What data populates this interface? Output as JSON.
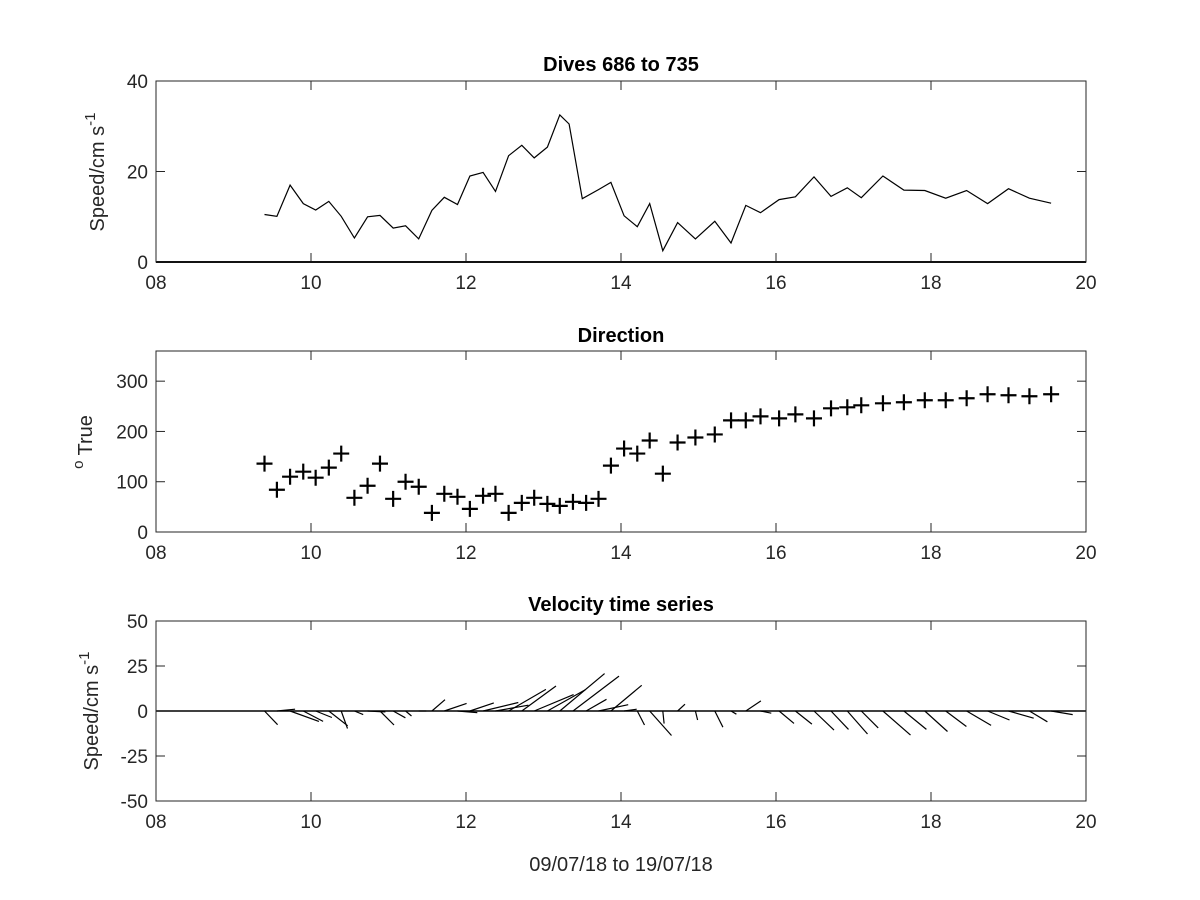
{
  "chart_data": [
    {
      "type": "line",
      "title": "Dives 686 to 735",
      "xlabel": "",
      "ylabel": "Speed/cm s",
      "ylabel_superscript": "-1",
      "xlim": [
        8,
        20
      ],
      "ylim": [
        0,
        40
      ],
      "xticks": [
        "08",
        "10",
        "12",
        "14",
        "16",
        "18",
        "20"
      ],
      "yticks": [
        "0",
        "20",
        "40"
      ],
      "grid": false,
      "series": [
        {
          "color": "#000000",
          "x": [
            9.4,
            9.56,
            9.73,
            9.9,
            10.06,
            10.23,
            10.39,
            10.56,
            10.73,
            10.89,
            11.06,
            11.22,
            11.39,
            11.56,
            11.72,
            11.89,
            12.05,
            12.22,
            12.38,
            12.55,
            12.72,
            12.88,
            13.05,
            13.21,
            13.33,
            13.5,
            13.71,
            13.87,
            14.04,
            14.21,
            14.37,
            14.54,
            14.73,
            14.96,
            15.21,
            15.42,
            15.61,
            15.8,
            16.04,
            16.25,
            16.49,
            16.71,
            16.92,
            17.1,
            17.38,
            17.65,
            17.92,
            18.19,
            18.46,
            18.73,
            19.0,
            19.27,
            19.55
          ],
          "y": [
            10.5,
            10.1,
            17.0,
            12.9,
            11.5,
            13.4,
            10.1,
            5.3,
            10.0,
            10.3,
            7.5,
            8.0,
            5.1,
            11.4,
            14.3,
            12.7,
            19.0,
            19.8,
            15.6,
            23.5,
            25.8,
            23.0,
            25.4,
            32.5,
            30.5,
            14.0,
            16.0,
            17.6,
            10.2,
            7.8,
            12.9,
            2.5,
            8.7,
            5.1,
            9.0,
            4.2,
            12.5,
            10.9,
            13.8,
            14.4,
            18.8,
            14.5,
            16.4,
            14.2,
            19.0,
            15.9,
            15.8,
            14.1,
            15.8,
            12.9,
            16.2,
            14.1,
            13.0
          ]
        }
      ]
    },
    {
      "type": "scatter",
      "title": "Direction",
      "xlabel": "",
      "ylabel": "True",
      "ylabel_superscript": "o",
      "xlim": [
        8,
        20
      ],
      "ylim": [
        0,
        360
      ],
      "xticks": [
        "08",
        "10",
        "12",
        "14",
        "16",
        "18",
        "20"
      ],
      "yticks": [
        "0",
        "100",
        "200",
        "300"
      ],
      "grid": false,
      "marker": "+",
      "series": [
        {
          "color": "#000000",
          "x": [
            9.4,
            9.56,
            9.73,
            9.9,
            10.06,
            10.23,
            10.39,
            10.56,
            10.73,
            10.89,
            11.06,
            11.22,
            11.39,
            11.56,
            11.72,
            11.89,
            12.05,
            12.22,
            12.38,
            12.55,
            12.72,
            12.88,
            13.05,
            13.21,
            13.38,
            13.55,
            13.71,
            13.87,
            14.04,
            14.21,
            14.37,
            14.54,
            14.73,
            14.96,
            15.21,
            15.42,
            15.61,
            15.8,
            16.04,
            16.25,
            16.49,
            16.71,
            16.92,
            17.1,
            17.38,
            17.65,
            17.92,
            18.19,
            18.46,
            18.73,
            19.0,
            19.27,
            19.55
          ],
          "y": [
            136,
            84,
            110,
            120,
            108,
            128,
            156,
            68,
            92,
            136,
            66,
            100,
            90,
            38,
            76,
            70,
            46,
            72,
            76,
            38,
            58,
            68,
            56,
            52,
            60,
            58,
            66,
            132,
            166,
            156,
            182,
            116,
            178,
            188,
            194,
            222,
            222,
            230,
            226,
            234,
            226,
            246,
            248,
            252,
            256,
            258,
            262,
            262,
            266,
            274,
            272,
            270,
            274
          ]
        }
      ]
    },
    {
      "type": "quiver",
      "title": "Velocity time series",
      "xlabel": "09/07/18 to 19/07/18",
      "ylabel": "Speed/cm s",
      "ylabel_superscript": "-1",
      "xlim": [
        8,
        20
      ],
      "ylim": [
        -50,
        50
      ],
      "xticks": [
        "08",
        "10",
        "12",
        "14",
        "16",
        "18",
        "20"
      ],
      "yticks": [
        "-50",
        "-25",
        "0",
        "25",
        "50"
      ],
      "grid": false,
      "zero_line": true,
      "series": [
        {
          "color": "#000000",
          "x": [
            9.4,
            9.56,
            9.73,
            9.9,
            10.06,
            10.23,
            10.39,
            10.56,
            10.73,
            10.89,
            11.06,
            11.22,
            11.39,
            11.56,
            11.72,
            11.89,
            12.05,
            12.22,
            12.38,
            12.55,
            12.72,
            12.88,
            13.05,
            13.21,
            13.38,
            13.55,
            13.71,
            13.87,
            14.04,
            14.21,
            14.37,
            14.54,
            14.73,
            14.96,
            15.21,
            15.42,
            15.61,
            15.8,
            16.04,
            16.25,
            16.49,
            16.71,
            16.92,
            17.1,
            17.38,
            17.65,
            17.92,
            18.19,
            18.46,
            18.73,
            19.0,
            19.27,
            19.55
          ],
          "u": [
            7.3,
            10.1,
            16.0,
            11.0,
            9.0,
            10.5,
            3.5,
            4.9,
            9.9,
            7.8,
            6.8,
            3.3,
            4.2,
            7.3,
            12.4,
            11.0,
            13.3,
            19.6,
            18.3,
            20.7,
            19.0,
            21.9,
            21.2,
            24.9,
            25.6,
            11.3,
            16.5,
            17.1,
            7.0,
            4.0,
            12.1,
            0.7,
            4.1,
            1.2,
            4.5,
            3.0,
            8.4,
            6.0,
            8.3,
            9.2,
            11.1,
            9.7,
            11.2,
            9.4,
            15.3,
            12.5,
            12.6,
            11.5,
            13.6,
            12.2,
            14.0,
            10.0,
            12.0
          ],
          "v": [
            -7.6,
            1.0,
            -5.8,
            -5.8,
            -3.6,
            -8.2,
            -9.7,
            -2.0,
            -0.5,
            -7.8,
            -3.8,
            -2.8,
            0.0,
            6.3,
            4.2,
            -0.9,
            4.5,
            4.7,
            3.2,
            12.0,
            13.9,
            9.1,
            11.9,
            20.8,
            19.4,
            6.5,
            3.5,
            14.3,
            1.0,
            -7.8,
            -13.6,
            -7.0,
            3.8,
            -5.0,
            -9.0,
            -1.8,
            5.6,
            -1.2,
            -6.9,
            -7.3,
            -10.6,
            -10.2,
            -12.8,
            -9.4,
            -13.4,
            -10.2,
            -11.4,
            -8.6,
            -8.0,
            -5.0,
            -4.0,
            -6.0,
            -2.0
          ]
        }
      ]
    }
  ]
}
